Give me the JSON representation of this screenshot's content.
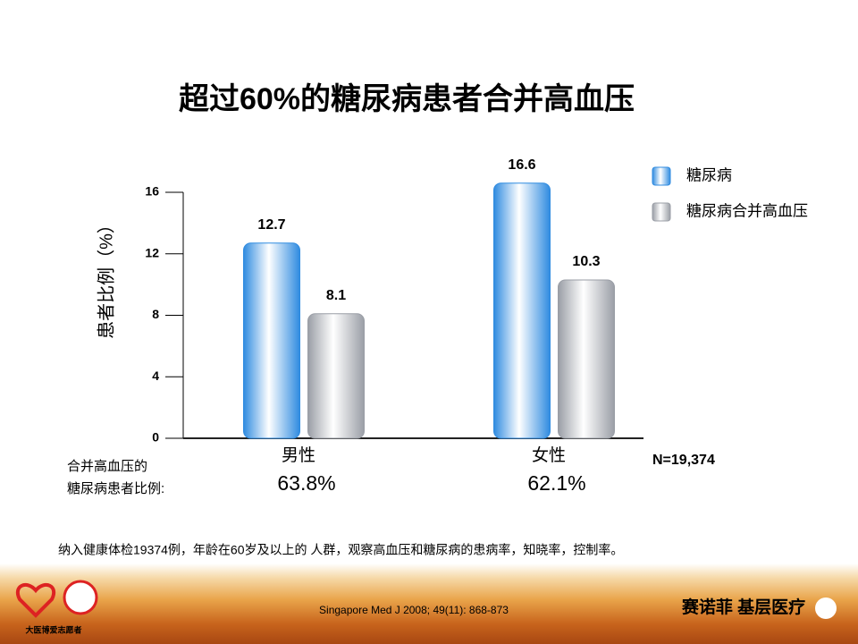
{
  "chart_data": {
    "type": "bar",
    "title": "超过60%的糖尿病患者合并高血压",
    "y_label": "患者比例（%）",
    "categories": [
      "男性",
      "女性"
    ],
    "series": [
      {
        "name": "糖尿病",
        "color": "#2f8be0",
        "values": [
          12.7,
          16.6
        ]
      },
      {
        "name": "糖尿病合并高血压",
        "color": "#9a9ea6",
        "values": [
          8.1,
          10.3
        ]
      }
    ],
    "ylim": [
      0,
      16
    ],
    "yticks": [
      0,
      4,
      8,
      12,
      16
    ],
    "grid": false,
    "legend": "top-right",
    "ratio_title": [
      "合并高血压的",
      "糖尿病患者比例:"
    ],
    "ratio_labels": [
      "63.8%",
      "62.1%"
    ],
    "sample_size": "N=19,374"
  },
  "footnote": "纳入健康体检19374例，年龄在60岁及以上的 人群，观察高血压和糖尿病的患病率，知晓率，控制率。",
  "citation": "Singapore Med J 2008; 49(11): 868-873",
  "logo_left": "大医博爱志愿者",
  "logo_right": "赛诺菲 基层医疗"
}
